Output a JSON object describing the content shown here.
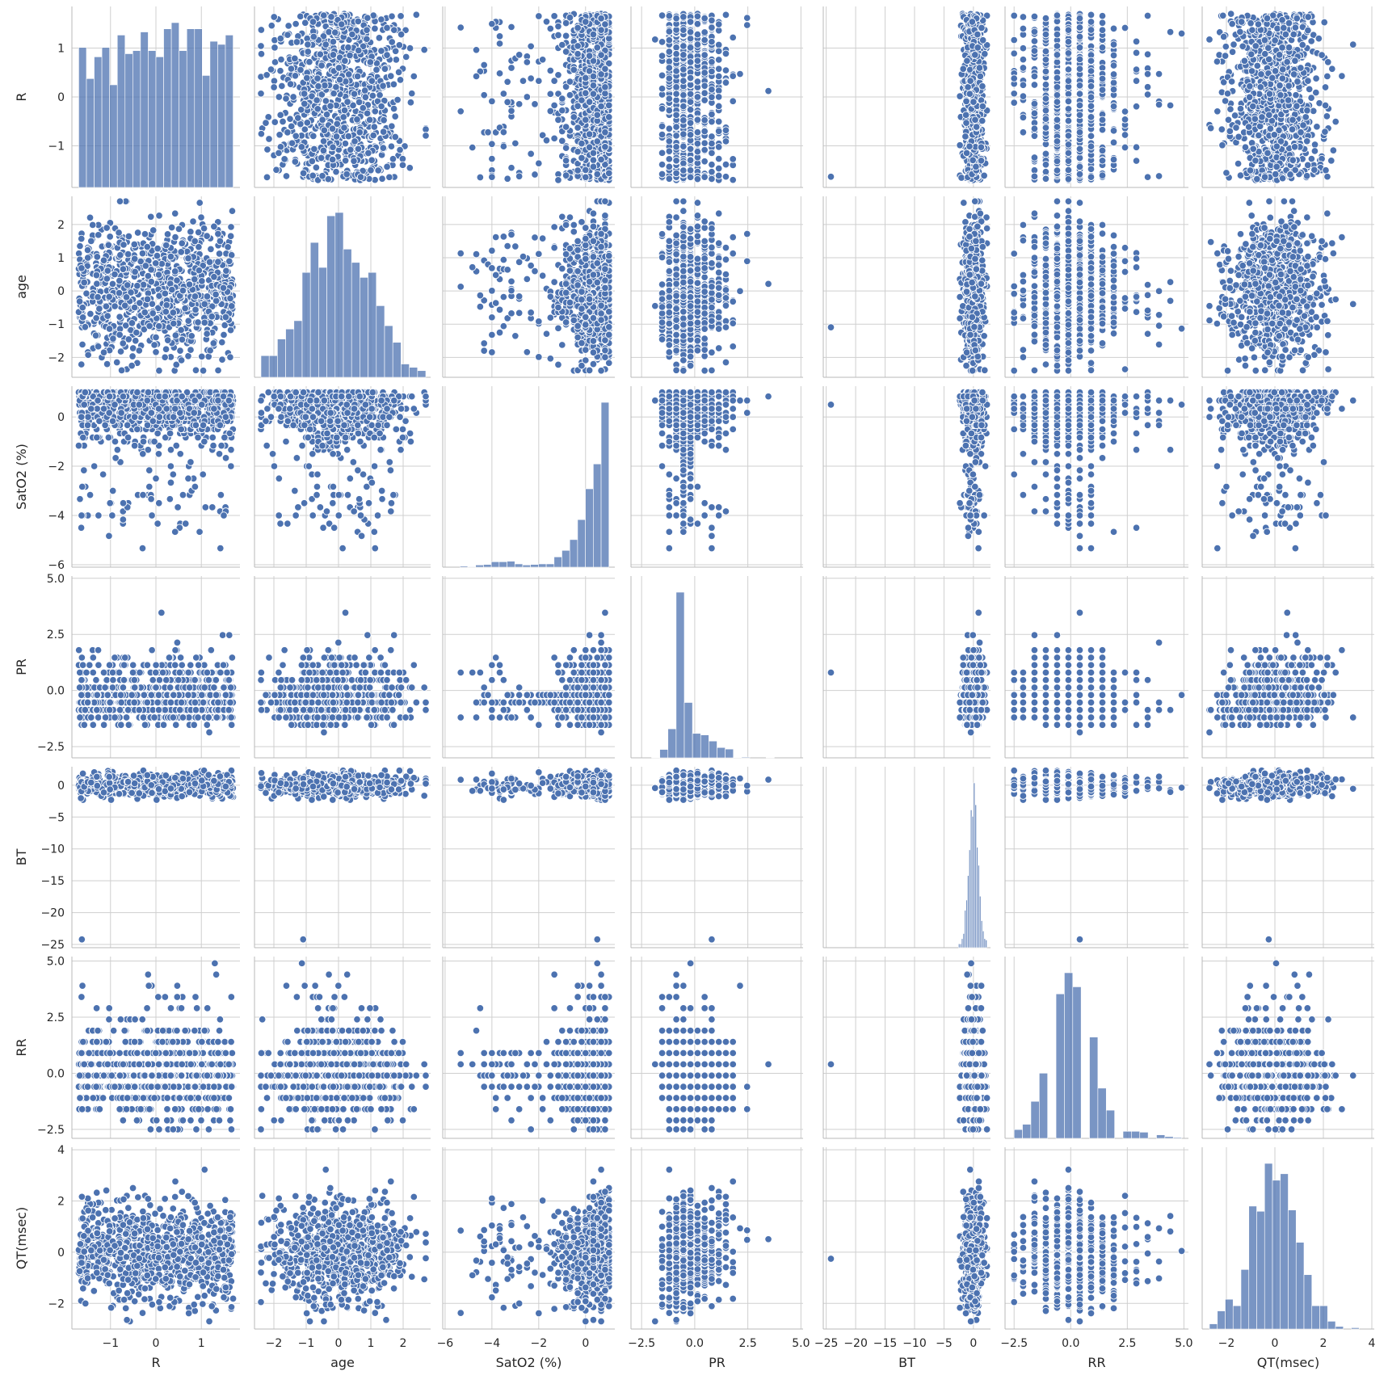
{
  "chart_data": {
    "type": "scatter",
    "layout": "pairplot",
    "variables": [
      "R",
      "age",
      "SatO2 (%)",
      "PR",
      "BT",
      "RR",
      "QT(msec)"
    ],
    "axes": [
      {
        "name": "R",
        "lim": [
          -1.85,
          1.85
        ],
        "ticks": [
          -1,
          0,
          1
        ],
        "tick_labels": [
          "−1",
          "0",
          "1"
        ],
        "distribution": "uniform",
        "range": [
          -1.7,
          1.7
        ],
        "skew": 0.5
      },
      {
        "name": "age",
        "lim": [
          -2.6,
          2.85
        ],
        "ticks": [
          -2,
          -1,
          0,
          1,
          2
        ],
        "tick_labels": [
          "−2",
          "−1",
          "0",
          "1",
          "2"
        ],
        "distribution": "normal",
        "range": [
          -2.4,
          2.7
        ],
        "skew": 0.5
      },
      {
        "name": "SatO2 (%)",
        "lim": [
          -6.1,
          1.25
        ],
        "ticks": [
          -6,
          -4,
          -2,
          0
        ],
        "tick_labels": [
          "−6",
          "−4",
          "−2",
          "0"
        ],
        "distribution": "left-skewed",
        "range": [
          -5.7,
          1.0
        ],
        "skew": 0.88
      },
      {
        "name": "PR",
        "lim": [
          -3.0,
          5.1
        ],
        "ticks": [
          -2.5,
          0.0,
          2.5,
          5.0
        ],
        "tick_labels": [
          "−2.5",
          "0.0",
          "2.5",
          "5.0"
        ],
        "distribution": "right-skewed",
        "range": [
          -2.8,
          4.9
        ],
        "skew": 0.3
      },
      {
        "name": "BT",
        "lim": [
          -25.5,
          2.9
        ],
        "ticks": [
          -25,
          -20,
          -15,
          -10,
          -5,
          0
        ],
        "tick_labels": [
          "−25",
          "−20",
          "−15",
          "−10",
          "−5",
          "0"
        ],
        "distribution": "concentrated",
        "range": [
          -2.3,
          2.3
        ],
        "outlier": -24.2,
        "skew": 0.5
      },
      {
        "name": "RR",
        "lim": [
          -2.9,
          5.2
        ],
        "ticks": [
          -2.5,
          0.0,
          2.5,
          5.0
        ],
        "tick_labels": [
          "−2.5",
          "0.0",
          "2.5",
          "5.0"
        ],
        "distribution": "discrete-right-skewed",
        "range": [
          -2.5,
          4.9
        ],
        "skew": 0.35
      },
      {
        "name": "QT(msec)",
        "lim": [
          -3.0,
          4.1
        ],
        "ticks": [
          -2,
          0,
          2,
          4
        ],
        "tick_labels": [
          "−2",
          "0",
          "2",
          "4"
        ],
        "distribution": "normal",
        "range": [
          -2.7,
          3.8
        ],
        "skew": 0.45
      }
    ],
    "n_points": 900,
    "diagonal": "histogram",
    "off_diagonal": "scatter",
    "grid": true,
    "colors": {
      "marker": "#4c72b0",
      "bar": "#4c72b0",
      "grid": "#cfcfcf",
      "background": "#ffffff"
    }
  }
}
